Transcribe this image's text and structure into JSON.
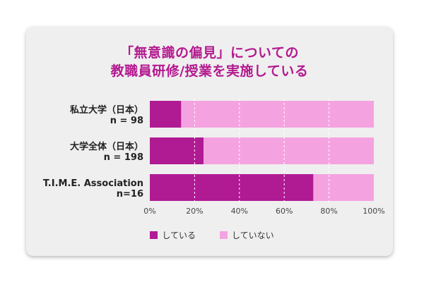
{
  "title_line1": "「無意識の偏見」についての",
  "title_line2": "教職員研修/授業を実施している",
  "colors": {
    "doing": "#b01a93",
    "not_doing": "#f5a3e0",
    "title": "#b4198f"
  },
  "chart_data": {
    "type": "bar",
    "orientation": "horizontal",
    "stacked": true,
    "categories": [
      [
        "私立大学（日本）",
        "n = 98"
      ],
      [
        "大学全体（日本）",
        "n = 198"
      ],
      [
        "T.I.M.E. Association",
        "n=16"
      ]
    ],
    "series": [
      {
        "name": "している",
        "values": [
          14,
          24,
          73
        ]
      },
      {
        "name": "していない",
        "values": [
          86,
          76,
          27
        ]
      }
    ],
    "xlim": [
      0,
      100
    ],
    "xticks": [
      "0%",
      "20%",
      "40%",
      "60%",
      "80%",
      "100%"
    ],
    "grid": "vertical-dashed",
    "legend_position": "bottom"
  },
  "legend": {
    "doing": "している",
    "not_doing": "していない"
  }
}
